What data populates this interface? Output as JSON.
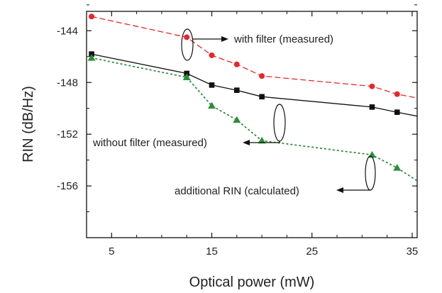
{
  "chart_data": {
    "type": "line",
    "title": "",
    "xlabel": "Optical power (mW)",
    "ylabel": "RIN (dB/Hz)",
    "xlim": [
      2.5,
      35.5
    ],
    "ylim": [
      -160,
      -142.5
    ],
    "xticks": [
      5,
      15,
      25,
      35
    ],
    "xtick_labels": [
      "5",
      "15",
      "25",
      "35"
    ],
    "yticks": [
      -144,
      -148,
      -152,
      -156
    ],
    "ytick_labels": [
      "-144",
      "-148",
      "-152",
      "-156"
    ],
    "grid": false,
    "series": [
      {
        "name": "with filter (measured)",
        "color": "#e8262a",
        "marker": "circle",
        "line": "dashed",
        "x": [
          3,
          12.5,
          15,
          17.5,
          20,
          31,
          33.5,
          35.5
        ],
        "y": [
          -142.9,
          -144.5,
          -145.9,
          -146.6,
          -147.5,
          -148.3,
          -148.9,
          -149.2
        ]
      },
      {
        "name": "without filter (measured)",
        "color": "#111111",
        "marker": "square",
        "line": "solid",
        "x": [
          3,
          12.5,
          15,
          17.5,
          20,
          31,
          33.5,
          35.5
        ],
        "y": [
          -145.8,
          -147.3,
          -148.2,
          -148.6,
          -149.1,
          -149.9,
          -150.3,
          -150.6
        ]
      },
      {
        "name": "additional RIN (calculated)",
        "color": "#2a8f3a",
        "marker": "triangle",
        "line": "dotted",
        "x": [
          3,
          12.5,
          15,
          17.5,
          20,
          31,
          33.5,
          35.5
        ],
        "y": [
          -146.1,
          -147.6,
          -149.8,
          -150.9,
          -152.5,
          -153.6,
          -154.6,
          -155.6
        ]
      }
    ],
    "annotations": [
      {
        "text": "with filter (measured)",
        "series": 0
      },
      {
        "text": "without filter (measured)",
        "series": 1
      },
      {
        "text": "additional RIN (calculated)",
        "series": 2
      }
    ]
  }
}
